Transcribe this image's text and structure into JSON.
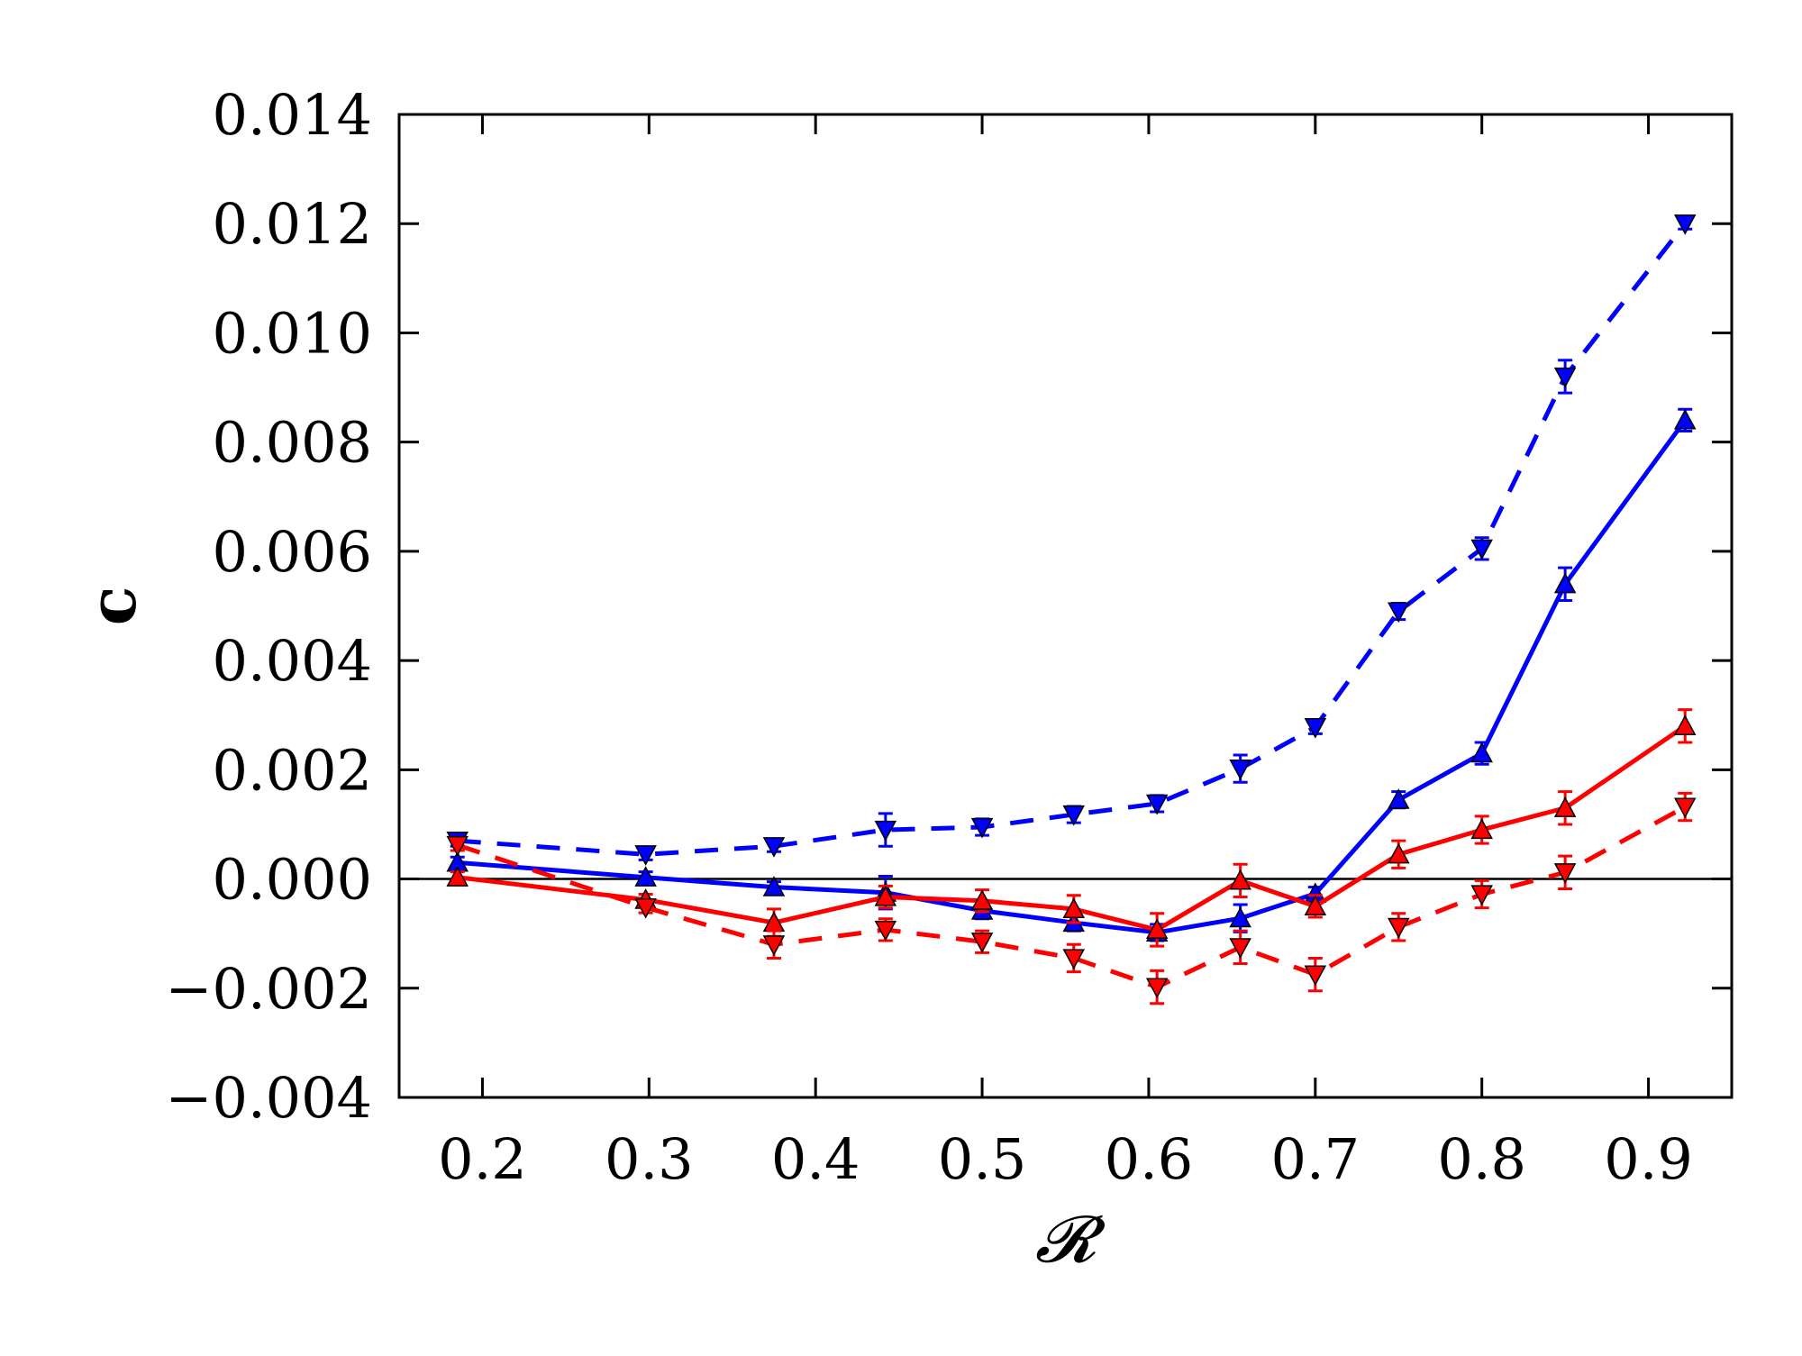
{
  "chart_data": {
    "type": "line",
    "title": "",
    "xlabel": "𝓡",
    "ylabel": "c",
    "xlim": [
      0.15,
      0.95
    ],
    "ylim": [
      -0.004,
      0.014
    ],
    "xticks": [
      0.2,
      0.3,
      0.4,
      0.5,
      0.6,
      0.7,
      0.8,
      0.9
    ],
    "xtick_labels": [
      "0.2",
      "0.3",
      "0.4",
      "0.5",
      "0.6",
      "0.7",
      "0.8",
      "0.9"
    ],
    "yticks": [
      -0.004,
      -0.002,
      0.0,
      0.002,
      0.004,
      0.006,
      0.008,
      0.01,
      0.012,
      0.014
    ],
    "ytick_labels": [
      "−0.004",
      "−0.002",
      "0.000",
      "0.002",
      "0.004",
      "0.006",
      "0.008",
      "0.010",
      "0.012",
      "0.014"
    ],
    "grid": false,
    "legend": false,
    "zero_line": true,
    "x": [
      0.185,
      0.298,
      0.375,
      0.442,
      0.5,
      0.555,
      0.605,
      0.655,
      0.7,
      0.75,
      0.8,
      0.85,
      0.922
    ],
    "series": [
      {
        "name": "blue dashed (down triangles)",
        "color": "#0000ff",
        "line": "dashed",
        "marker": "triangle-down",
        "values": [
          0.0007,
          0.00045,
          0.0006,
          0.0009,
          0.00095,
          0.00118,
          0.00138,
          0.00202,
          0.00278,
          0.0049,
          0.00605,
          0.0092,
          0.012
        ],
        "errors": [
          0.0001,
          0.0001,
          0.0001,
          0.0003,
          0.00015,
          0.00015,
          0.00015,
          0.00025,
          0.00012,
          0.00015,
          0.0002,
          0.0003,
          0.0001
        ]
      },
      {
        "name": "blue solid (up triangles)",
        "color": "#0000ff",
        "line": "solid",
        "marker": "triangle-up",
        "values": [
          0.0003,
          3e-05,
          -0.00015,
          -0.00025,
          -0.00058,
          -0.0008,
          -0.00098,
          -0.00072,
          -0.00027,
          0.00145,
          0.0023,
          0.0054,
          0.0084
        ],
        "errors": [
          0.0001,
          0.0001,
          0.0001,
          0.0003,
          0.00015,
          0.00015,
          0.00015,
          0.00025,
          0.00012,
          0.00015,
          0.0002,
          0.0003,
          0.0002
        ]
      },
      {
        "name": "red solid (up triangles)",
        "color": "#ff0000",
        "line": "solid",
        "marker": "triangle-up",
        "values": [
          3e-05,
          -0.00038,
          -0.0008,
          -0.00033,
          -0.0004,
          -0.00055,
          -0.00093,
          -3e-05,
          -0.0005,
          0.00045,
          0.0009,
          0.0013,
          0.0028
        ],
        "errors": [
          0.0001,
          0.0001,
          0.00025,
          0.0002,
          0.0002,
          0.00025,
          0.0003,
          0.0003,
          0.0002,
          0.00025,
          0.00025,
          0.0003,
          0.0003
        ]
      },
      {
        "name": "red dashed (down triangles)",
        "color": "#ff0000",
        "line": "dashed",
        "marker": "triangle-down",
        "values": [
          0.00062,
          -0.00052,
          -0.0012,
          -0.00093,
          -0.00115,
          -0.00145,
          -0.00198,
          -0.00125,
          -0.00175,
          -0.00088,
          -0.00028,
          0.00012,
          0.00132
        ],
        "errors": [
          0.0001,
          0.0001,
          0.00025,
          0.0002,
          0.0002,
          0.00025,
          0.0003,
          0.0003,
          0.0003,
          0.00025,
          0.00025,
          0.0003,
          0.00025
        ]
      }
    ]
  }
}
